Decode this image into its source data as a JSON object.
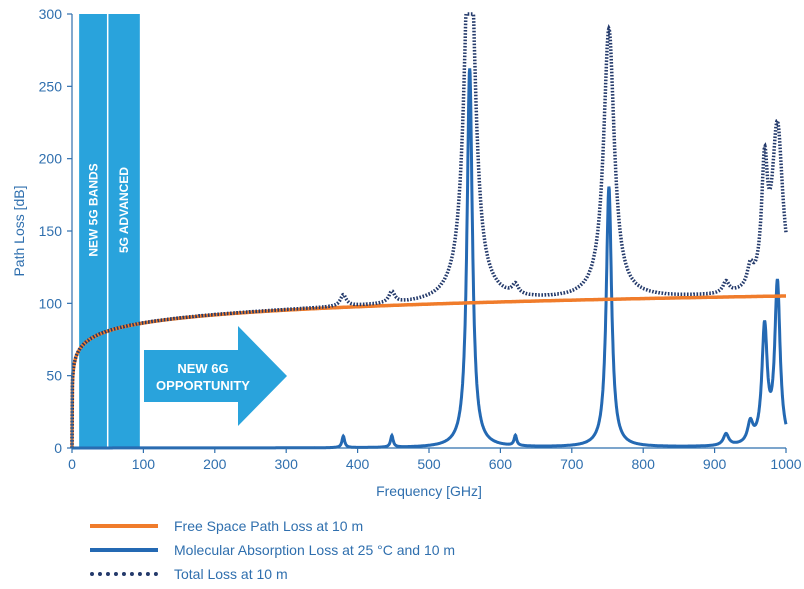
{
  "chart_data": {
    "type": "line",
    "xlabel": "Frequency [GHz]",
    "ylabel": "Path Loss [dB]",
    "xlim": [
      0,
      1000
    ],
    "ylim": [
      0,
      300
    ],
    "x_ticks": [
      0,
      100,
      200,
      300,
      400,
      500,
      600,
      700,
      800,
      900,
      1000
    ],
    "y_ticks": [
      0,
      50,
      100,
      150,
      200,
      250,
      300
    ],
    "grid": false,
    "legend_position": "bottom",
    "series": [
      {
        "name": "Free Space Path Loss at 10 m",
        "color": "#f07c2b",
        "style": "solid",
        "x": [
          1,
          5,
          10,
          20,
          30,
          50,
          70,
          100,
          150,
          200,
          300,
          400,
          500,
          600,
          700,
          800,
          900,
          1000
        ],
        "values": [
          52.4,
          66.4,
          72.4,
          78.5,
          82.0,
          86.4,
          89.3,
          92.4,
          95.9,
          98.5,
          102.0,
          104.5,
          106.4,
          108.0,
          109.3,
          110.5,
          111.5,
          112.4
        ]
      },
      {
        "name": "Molecular Absorption Loss at 25 °C and 10 m",
        "color": "#2469b3",
        "style": "solid",
        "peaks": [
          {
            "x": 380,
            "y": 8
          },
          {
            "x": 448,
            "y": 8
          },
          {
            "x": 557,
            "y": 262
          },
          {
            "x": 621,
            "y": 7
          },
          {
            "x": 752,
            "y": 180
          },
          {
            "x": 916,
            "y": 8
          },
          {
            "x": 950,
            "y": 14
          },
          {
            "x": 970,
            "y": 80
          },
          {
            "x": 988,
            "y": 111
          }
        ]
      },
      {
        "name": "Total Loss at 10 m",
        "color": "#243a6b",
        "style": "dotted"
      }
    ],
    "annotations": {
      "band1": "NEW 5G BANDS",
      "band2": "5G ADVANCED",
      "arrow_line1": "NEW 6G",
      "arrow_line2": "OPPORTUNITY"
    },
    "band_ranges": [
      [
        10,
        50
      ],
      [
        50,
        95
      ]
    ],
    "band_color": "#29a3dc"
  },
  "legend": [
    {
      "label": "Free Space Path Loss at 10 m",
      "color": "#f07c2b",
      "style": "solid"
    },
    {
      "label": "Molecular Absorption Loss at 25 °C and 10 m",
      "color": "#2469b3",
      "style": "solid"
    },
    {
      "label": "Total Loss at 10 m",
      "color": "#243a6b",
      "style": "dotted"
    }
  ]
}
